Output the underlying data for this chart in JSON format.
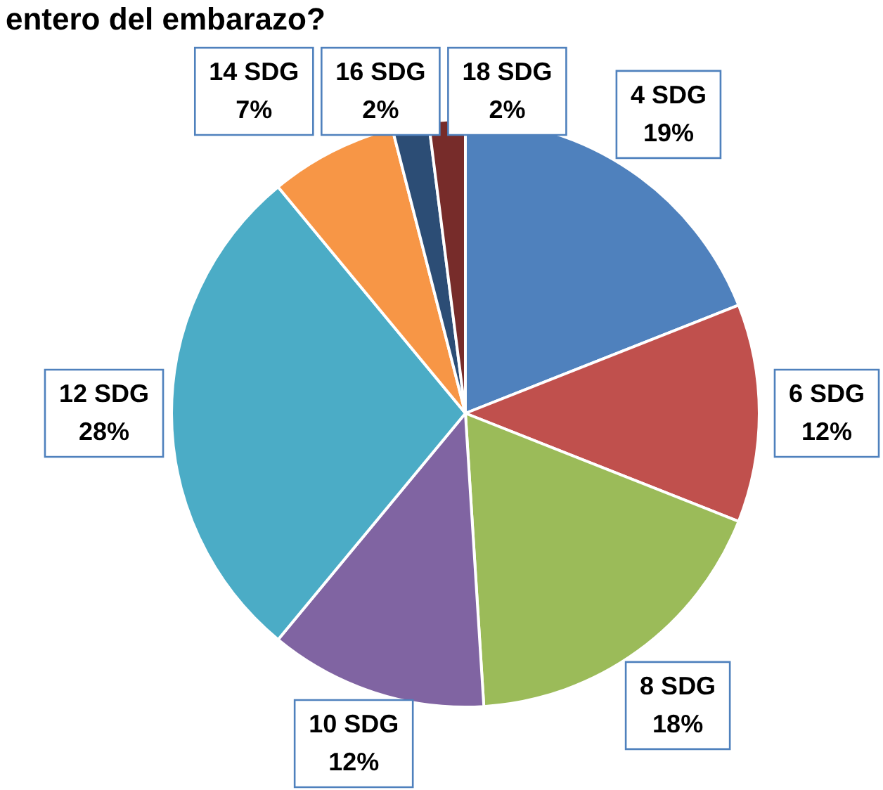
{
  "chart_data": {
    "type": "pie",
    "title": "entero del embarazo?",
    "categories": [
      "4 SDG",
      "6 SDG",
      "8 SDG",
      "10 SDG",
      "12 SDG",
      "14 SDG",
      "16 SDG",
      "18 SDG"
    ],
    "values": [
      19,
      12,
      18,
      12,
      28,
      7,
      2,
      2
    ],
    "value_labels": [
      "19%",
      "12%",
      "18%",
      "12%",
      "28%",
      "7%",
      "2%",
      "2%"
    ],
    "colors": [
      "#4f81bd",
      "#c0504d",
      "#9bbb59",
      "#8064a2",
      "#4bacc6",
      "#f79646",
      "#2c4d75",
      "#772c2a"
    ],
    "legend": false
  }
}
